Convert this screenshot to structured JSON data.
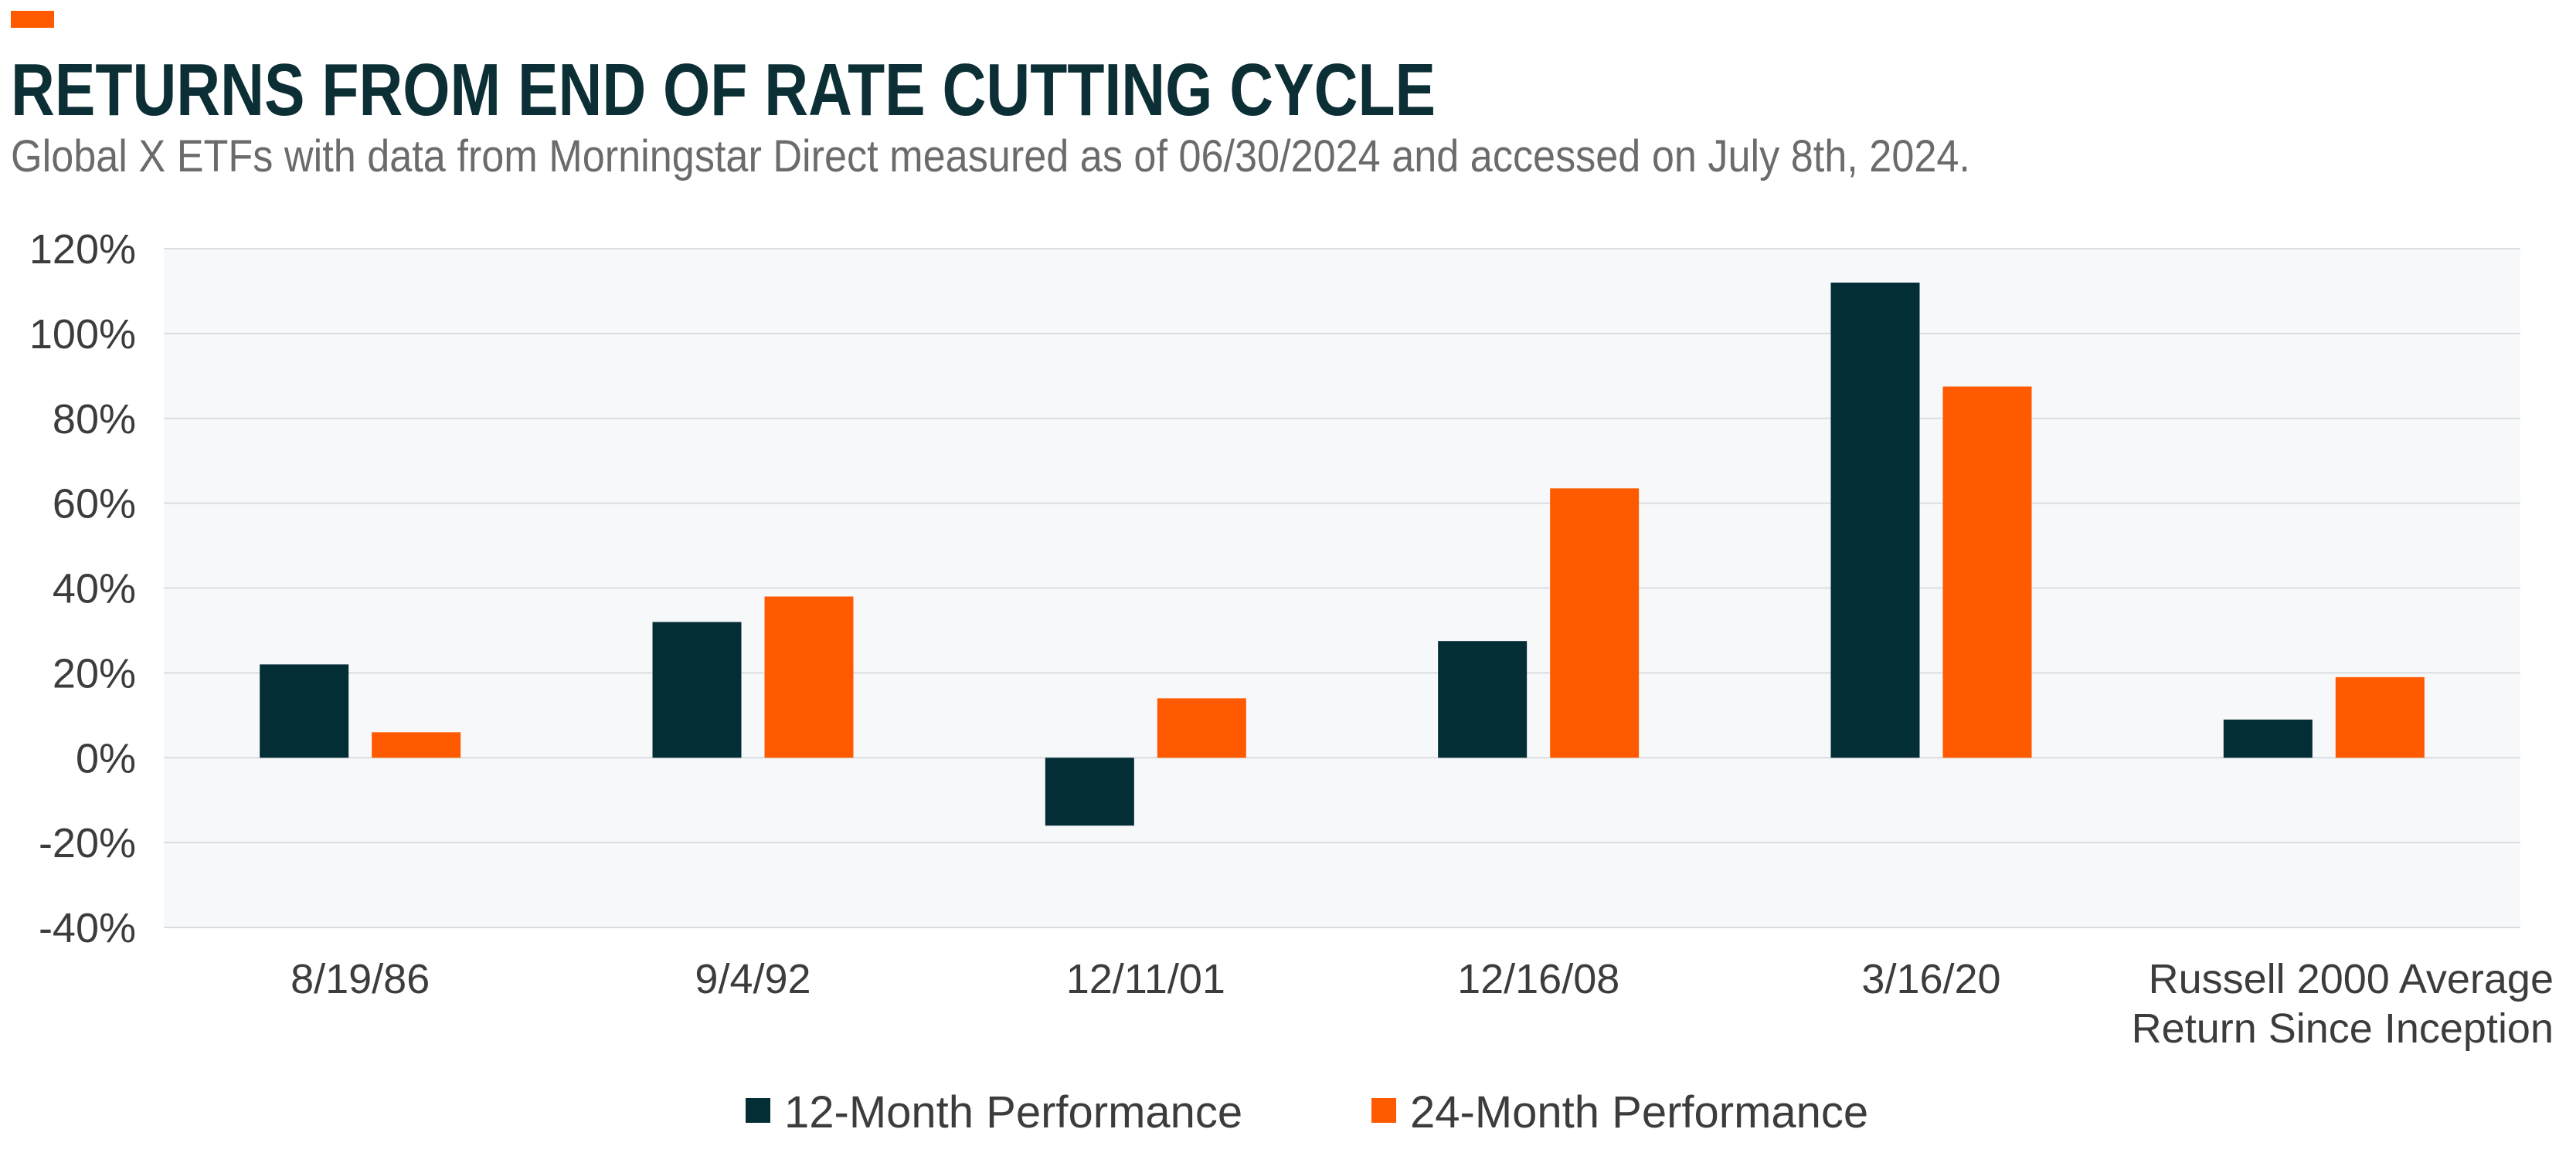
{
  "header": {
    "title": "RETURNS FROM END OF RATE CUTTING CYCLE",
    "subtitle": "Global X ETFs with data from Morningstar Direct measured as of 06/30/2024 and accessed on July 8th, 2024."
  },
  "colors": {
    "accent": "#ff5a00",
    "series_dark": "#032e36",
    "series_orange": "#ff5a00",
    "plot_background": "#f7f8fa",
    "gridline": "#d9dde1",
    "text": "#3c3c3c",
    "title": "#0b2f35"
  },
  "chart_data": {
    "type": "bar",
    "categories": [
      [
        "8/19/86"
      ],
      [
        "9/4/92"
      ],
      [
        "12/11/01"
      ],
      [
        "12/16/08"
      ],
      [
        "3/16/20"
      ],
      [
        "Russell 2000 Average",
        "Return Since Inception"
      ]
    ],
    "series": [
      {
        "name": "12-Month Performance",
        "color": "#032e36",
        "values": [
          22,
          32,
          -16,
          27.5,
          112,
          9
        ]
      },
      {
        "name": "24-Month Performance",
        "color": "#ff5a00",
        "values": [
          6,
          38,
          14,
          63.5,
          87.5,
          19
        ]
      }
    ],
    "ylim": [
      -40,
      120
    ],
    "yticks": [
      120,
      100,
      80,
      60,
      40,
      20,
      0,
      -20,
      -40
    ],
    "ytick_labels": [
      "120%",
      "100%",
      "80%",
      "60%",
      "40%",
      "20%",
      "0%",
      "-20%",
      "-40%"
    ],
    "grid": true,
    "legend_position": "bottom-center",
    "xlabel": "",
    "ylabel": ""
  }
}
